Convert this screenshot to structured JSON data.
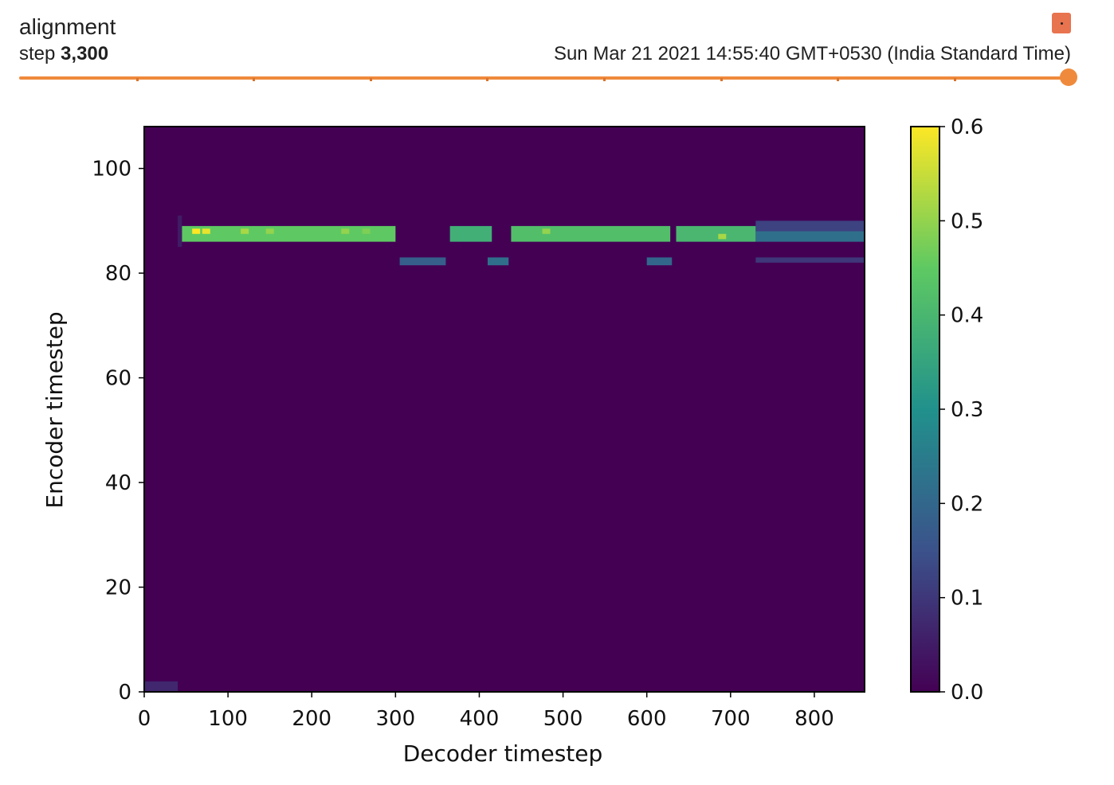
{
  "header": {
    "title": "alignment",
    "step_label": "step",
    "step_value": "3,300",
    "wall_time": "Sun Mar 21 2021 14:55:40 GMT+0530 (India Standard Time)"
  },
  "colors": {
    "accent": "#ef8a3c",
    "menu_button": "#e8734f",
    "viridis": [
      "#440154",
      "#3b528b",
      "#21918c",
      "#5ec962",
      "#fde725"
    ]
  },
  "chart_data": {
    "type": "heatmap",
    "xlabel": "Decoder timestep",
    "ylabel": "Encoder timestep",
    "xlim": [
      0,
      860
    ],
    "ylim": [
      0,
      108
    ],
    "x_ticks": [
      0,
      100,
      200,
      300,
      400,
      500,
      600,
      700,
      800
    ],
    "y_ticks": [
      0,
      20,
      40,
      60,
      80,
      100
    ],
    "colorbar": {
      "min": 0.0,
      "max": 0.6,
      "ticks": [
        "0.0",
        "0.1",
        "0.2",
        "0.3",
        "0.4",
        "0.5",
        "0.6"
      ]
    },
    "colormap": "viridis",
    "background_value": 0.0,
    "bands": [
      {
        "x": [
          45,
          300
        ],
        "y": [
          86,
          89
        ],
        "value": 0.45
      },
      {
        "x": [
          365,
          415
        ],
        "y": [
          86,
          89
        ],
        "value": 0.38
      },
      {
        "x": [
          438,
          628
        ],
        "y": [
          86,
          89
        ],
        "value": 0.42
      },
      {
        "x": [
          635,
          730
        ],
        "y": [
          86,
          89
        ],
        "value": 0.4
      },
      {
        "x": [
          730,
          860
        ],
        "y": [
          86,
          88
        ],
        "value": 0.22
      },
      {
        "x": [
          730,
          860
        ],
        "y": [
          88,
          90
        ],
        "value": 0.12
      },
      {
        "x": [
          730,
          860
        ],
        "y": [
          82,
          83
        ],
        "value": 0.1
      },
      {
        "x": [
          305,
          360
        ],
        "y": [
          81.5,
          83
        ],
        "value": 0.18
      },
      {
        "x": [
          410,
          435
        ],
        "y": [
          81.5,
          83
        ],
        "value": 0.22
      },
      {
        "x": [
          600,
          630
        ],
        "y": [
          81.5,
          83
        ],
        "value": 0.2
      },
      {
        "x": [
          0,
          40
        ],
        "y": [
          0,
          2
        ],
        "value": 0.07
      },
      {
        "x": [
          40,
          45
        ],
        "y": [
          85,
          91
        ],
        "value": 0.05
      }
    ],
    "peaks": [
      {
        "x": 62,
        "y": 88,
        "value": 0.6
      },
      {
        "x": 74,
        "y": 88,
        "value": 0.58
      },
      {
        "x": 120,
        "y": 88,
        "value": 0.52
      },
      {
        "x": 150,
        "y": 88,
        "value": 0.5
      },
      {
        "x": 240,
        "y": 88,
        "value": 0.5
      },
      {
        "x": 265,
        "y": 88,
        "value": 0.48
      },
      {
        "x": 480,
        "y": 88,
        "value": 0.5
      },
      {
        "x": 690,
        "y": 87,
        "value": 0.52
      }
    ]
  }
}
